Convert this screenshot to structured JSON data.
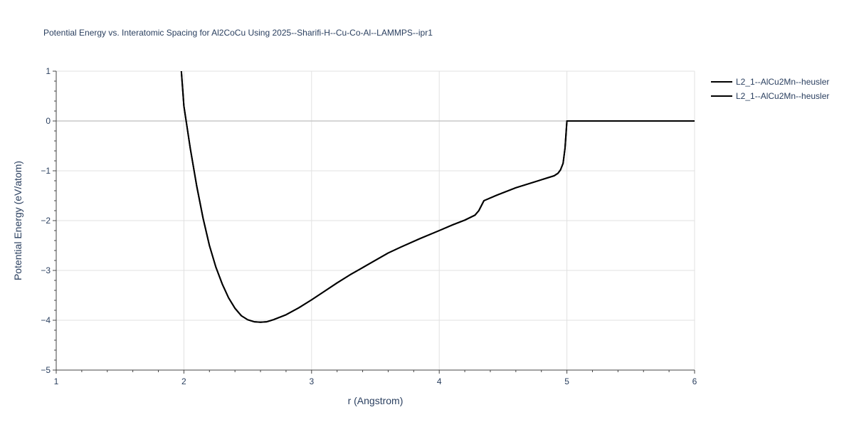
{
  "chart_data": {
    "type": "line",
    "title": "Potential Energy vs. Interatomic Spacing for Al2CoCu Using 2025--Sharifi-H--Cu-Co-Al--LAMMPS--ipr1",
    "xlabel": "r (Angstrom)",
    "ylabel": "Potential Energy (eV/atom)",
    "xlim": [
      1,
      6
    ],
    "ylim": [
      -5,
      1
    ],
    "xticks": [
      1,
      2,
      3,
      4,
      5,
      6
    ],
    "xtick_labels": [
      "1",
      "2",
      "3",
      "4",
      "5",
      "6"
    ],
    "yticks": [
      1,
      0,
      -1,
      -2,
      -3,
      -4,
      -5
    ],
    "ytick_labels": [
      "1",
      "0",
      "−1",
      "−2",
      "−3",
      "−4",
      "−5"
    ],
    "grid": true,
    "legend_position": "top-right",
    "series": [
      {
        "name": "L2_1--AlCu2Mn--heusler",
        "color": "#000000",
        "x": [
          1.98,
          2.0,
          2.05,
          2.1,
          2.15,
          2.2,
          2.25,
          2.3,
          2.35,
          2.4,
          2.45,
          2.5,
          2.55,
          2.6,
          2.65,
          2.7,
          2.8,
          2.9,
          3.0,
          3.1,
          3.2,
          3.3,
          3.45,
          3.6,
          3.7,
          3.85,
          4.0,
          4.1,
          4.2,
          4.28,
          4.31,
          4.33,
          4.35,
          4.45,
          4.6,
          4.75,
          4.9,
          4.93,
          4.95,
          4.97,
          4.985,
          5.0,
          5.5,
          6.0
        ],
        "y": [
          1.0,
          0.3,
          -0.55,
          -1.3,
          -1.95,
          -2.5,
          -2.93,
          -3.27,
          -3.55,
          -3.76,
          -3.91,
          -3.99,
          -4.03,
          -4.04,
          -4.03,
          -3.99,
          -3.89,
          -3.75,
          -3.59,
          -3.42,
          -3.25,
          -3.09,
          -2.87,
          -2.65,
          -2.53,
          -2.36,
          -2.2,
          -2.09,
          -1.99,
          -1.89,
          -1.8,
          -1.7,
          -1.6,
          -1.49,
          -1.34,
          -1.22,
          -1.1,
          -1.05,
          -0.98,
          -0.85,
          -0.55,
          0.0,
          0.0,
          0.0
        ]
      },
      {
        "name": "L2_1--AlCu2Mn--heusler",
        "color": "#000000",
        "x": [
          1.98,
          2.0,
          2.05,
          2.1,
          2.15,
          2.2,
          2.25,
          2.3,
          2.35,
          2.4,
          2.45,
          2.5,
          2.55,
          2.6,
          2.65,
          2.7,
          2.8,
          2.9,
          3.0,
          3.1,
          3.2,
          3.3,
          3.45,
          3.6,
          3.7,
          3.85,
          4.0,
          4.1,
          4.2,
          4.28,
          4.31,
          4.33,
          4.35,
          4.45,
          4.6,
          4.75,
          4.9,
          4.93,
          4.95,
          4.97,
          4.985,
          5.0,
          5.5,
          6.0
        ],
        "y": [
          1.0,
          0.3,
          -0.55,
          -1.3,
          -1.95,
          -2.5,
          -2.93,
          -3.27,
          -3.55,
          -3.76,
          -3.91,
          -3.99,
          -4.03,
          -4.04,
          -4.03,
          -3.99,
          -3.89,
          -3.75,
          -3.59,
          -3.42,
          -3.25,
          -3.09,
          -2.87,
          -2.65,
          -2.53,
          -2.36,
          -2.2,
          -2.09,
          -1.99,
          -1.89,
          -1.8,
          -1.7,
          -1.6,
          -1.49,
          -1.34,
          -1.22,
          -1.1,
          -1.05,
          -0.98,
          -0.85,
          -0.55,
          0.0,
          0.0,
          0.0
        ]
      }
    ]
  }
}
